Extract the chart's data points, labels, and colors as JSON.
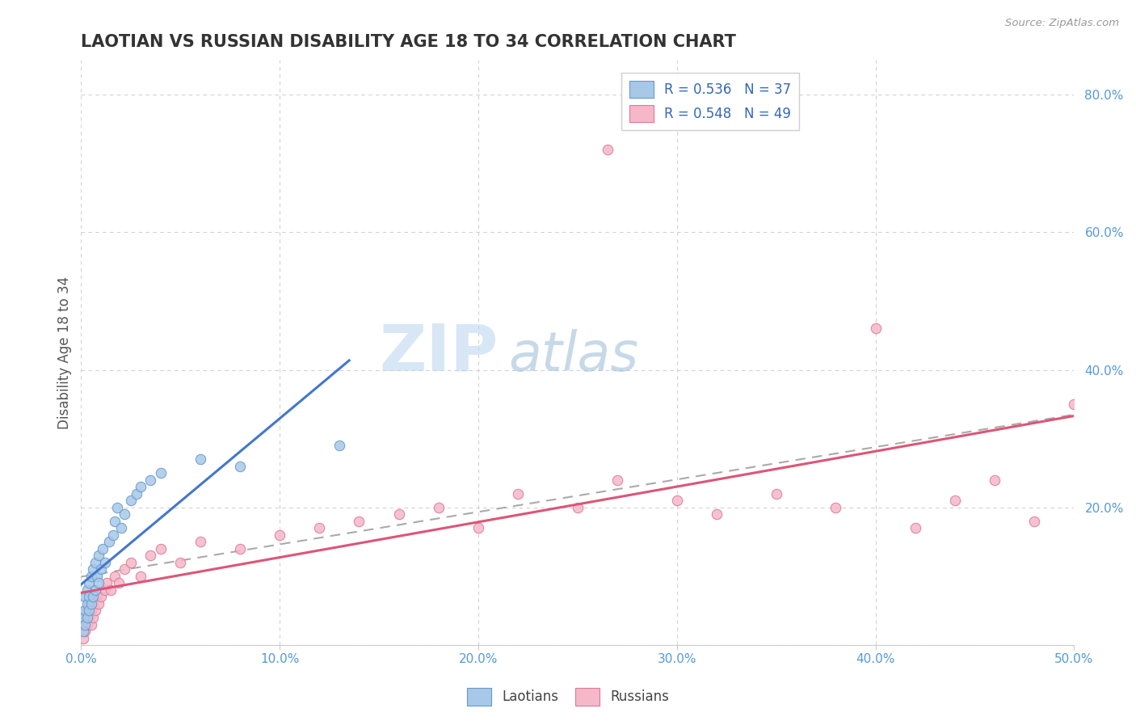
{
  "title": "LAOTIAN VS RUSSIAN DISABILITY AGE 18 TO 34 CORRELATION CHART",
  "ylabel": "Disability Age 18 to 34",
  "source": "Source: ZipAtlas.com",
  "xlim": [
    0.0,
    0.5
  ],
  "ylim": [
    0.0,
    0.85
  ],
  "ytick_vals": [
    0.0,
    0.2,
    0.4,
    0.6,
    0.8
  ],
  "ytick_labels": [
    "",
    "20.0%",
    "40.0%",
    "60.0%",
    "80.0%"
  ],
  "xtick_vals": [
    0.0,
    0.1,
    0.2,
    0.3,
    0.4,
    0.5
  ],
  "xtick_labels": [
    "0.0%",
    "10.0%",
    "20.0%",
    "30.0%",
    "40.0%",
    "50.0%"
  ],
  "legend_line1": "R = 0.536   N = 37",
  "legend_line2": "R = 0.548   N = 49",
  "color_laotian_fill": "#a8c8e8",
  "color_laotian_edge": "#6699cc",
  "color_russian_fill": "#f5b8c8",
  "color_russian_edge": "#dd7799",
  "color_trend_laotian": "#4477cc",
  "color_trend_russian": "#dd5577",
  "color_trend_overall": "#aaaaaa",
  "color_axis_ticks": "#5599dd",
  "color_legend_text": "#3366bb",
  "color_title": "#333333",
  "color_source": "#999999",
  "color_grid": "#cccccc",
  "watermark_zip_color": "#aaccee",
  "watermark_atlas_color": "#99bbdd",
  "laotian_x": [
    0.001,
    0.001,
    0.002,
    0.002,
    0.002,
    0.003,
    0.003,
    0.003,
    0.004,
    0.004,
    0.004,
    0.005,
    0.005,
    0.006,
    0.006,
    0.007,
    0.007,
    0.008,
    0.009,
    0.009,
    0.01,
    0.011,
    0.012,
    0.014,
    0.016,
    0.017,
    0.018,
    0.02,
    0.022,
    0.025,
    0.028,
    0.03,
    0.035,
    0.04,
    0.06,
    0.08,
    0.13
  ],
  "laotian_y": [
    0.02,
    0.04,
    0.03,
    0.05,
    0.07,
    0.04,
    0.06,
    0.08,
    0.05,
    0.07,
    0.09,
    0.06,
    0.1,
    0.07,
    0.11,
    0.08,
    0.12,
    0.1,
    0.09,
    0.13,
    0.11,
    0.14,
    0.12,
    0.15,
    0.16,
    0.18,
    0.2,
    0.17,
    0.19,
    0.21,
    0.22,
    0.23,
    0.24,
    0.25,
    0.27,
    0.26,
    0.29
  ],
  "russian_x": [
    0.001,
    0.001,
    0.002,
    0.002,
    0.003,
    0.003,
    0.004,
    0.004,
    0.005,
    0.005,
    0.006,
    0.006,
    0.007,
    0.008,
    0.009,
    0.01,
    0.012,
    0.013,
    0.015,
    0.017,
    0.019,
    0.022,
    0.025,
    0.03,
    0.035,
    0.04,
    0.05,
    0.06,
    0.08,
    0.1,
    0.12,
    0.14,
    0.16,
    0.18,
    0.2,
    0.22,
    0.25,
    0.27,
    0.3,
    0.32,
    0.35,
    0.38,
    0.4,
    0.42,
    0.44,
    0.46,
    0.48,
    0.5,
    0.265
  ],
  "russian_y": [
    0.01,
    0.03,
    0.02,
    0.04,
    0.03,
    0.05,
    0.04,
    0.06,
    0.03,
    0.05,
    0.04,
    0.06,
    0.05,
    0.07,
    0.06,
    0.07,
    0.08,
    0.09,
    0.08,
    0.1,
    0.09,
    0.11,
    0.12,
    0.1,
    0.13,
    0.14,
    0.12,
    0.15,
    0.14,
    0.16,
    0.17,
    0.18,
    0.19,
    0.2,
    0.17,
    0.22,
    0.2,
    0.24,
    0.21,
    0.19,
    0.22,
    0.2,
    0.46,
    0.17,
    0.21,
    0.24,
    0.18,
    0.35,
    0.72
  ],
  "lao_trend_x_start": 0.0,
  "lao_trend_x_end": 0.135,
  "rus_trend_x_start": 0.0,
  "rus_trend_x_end": 0.5,
  "overall_trend_x_start": 0.0,
  "overall_trend_x_end": 0.5
}
